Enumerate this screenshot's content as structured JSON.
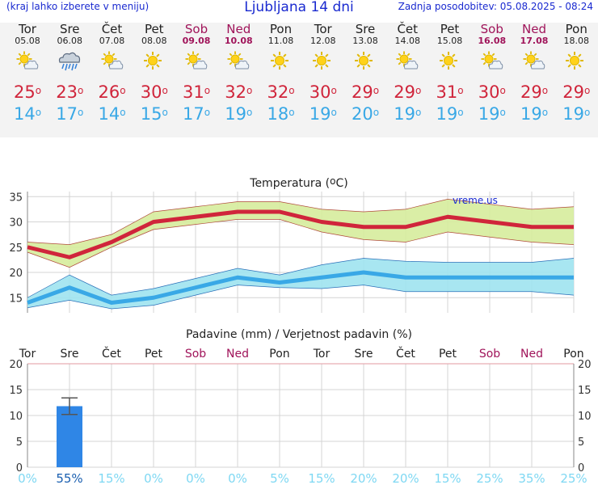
{
  "header": {
    "menu_hint": "(kraj lahko izberete v meniju)",
    "title": "Ljubljana 14 dni",
    "last_update": "Zadnja posodobitev: 05.08.2025 - 08:24"
  },
  "days": [
    {
      "name": "Tor",
      "date": "05.08",
      "icon": "partly-cloudy-icon",
      "max": "25",
      "min": "14",
      "weekend": false
    },
    {
      "name": "Sre",
      "date": "06.08",
      "icon": "rain-cloud-icon",
      "max": "23",
      "min": "17",
      "weekend": false
    },
    {
      "name": "Čet",
      "date": "07.08",
      "icon": "partly-cloudy-icon",
      "max": "26",
      "min": "14",
      "weekend": false
    },
    {
      "name": "Pet",
      "date": "08.08",
      "icon": "sun-icon",
      "max": "30",
      "min": "15",
      "weekend": false
    },
    {
      "name": "Sob",
      "date": "09.08",
      "icon": "partly-cloudy-icon",
      "max": "31",
      "min": "17",
      "weekend": true
    },
    {
      "name": "Ned",
      "date": "10.08",
      "icon": "partly-cloudy-icon",
      "max": "32",
      "min": "19",
      "weekend": true
    },
    {
      "name": "Pon",
      "date": "11.08",
      "icon": "sun-icon",
      "max": "32",
      "min": "18",
      "weekend": false
    },
    {
      "name": "Tor",
      "date": "12.08",
      "icon": "sun-icon",
      "max": "30",
      "min": "19",
      "weekend": false
    },
    {
      "name": "Sre",
      "date": "13.08",
      "icon": "sun-icon",
      "max": "29",
      "min": "20",
      "weekend": false
    },
    {
      "name": "Čet",
      "date": "14.08",
      "icon": "partly-cloudy-icon",
      "max": "29",
      "min": "19",
      "weekend": false
    },
    {
      "name": "Pet",
      "date": "15.08",
      "icon": "sun-icon",
      "max": "31",
      "min": "19",
      "weekend": false
    },
    {
      "name": "Sob",
      "date": "16.08",
      "icon": "partly-cloudy-icon",
      "max": "30",
      "min": "19",
      "weekend": true
    },
    {
      "name": "Ned",
      "date": "17.08",
      "icon": "partly-cloudy-icon",
      "max": "29",
      "min": "19",
      "weekend": true
    },
    {
      "name": "Pon",
      "date": "18.08",
      "icon": "sun-icon",
      "max": "29",
      "min": "19",
      "weekend": false
    }
  ],
  "degree_symbol": "o",
  "colors": {
    "max": "#d0253b",
    "min": "#39a8e6",
    "weekend": "#a0145a",
    "max_band": "#d6ec9c",
    "min_band": "#9fe3ef",
    "bar": "#2f86e6",
    "prob": "#7fd8f3"
  },
  "chart_data": [
    {
      "type": "line",
      "title": "Temperatura (°C)",
      "watermark": "vreme.us",
      "yticks": [
        15,
        20,
        25,
        30,
        35
      ],
      "ylim": [
        12,
        36
      ],
      "series": [
        {
          "name": "max",
          "values": [
            25,
            23,
            26,
            30,
            31,
            32,
            32,
            30,
            29,
            29,
            31,
            30,
            29,
            29
          ],
          "band_low": [
            24,
            21,
            25,
            28.5,
            29.5,
            30.5,
            30.5,
            28,
            26.5,
            26,
            28,
            27,
            26,
            25.5
          ],
          "band_high": [
            26,
            25.5,
            27.5,
            32,
            33,
            34,
            34,
            32.5,
            32,
            32.5,
            34.5,
            33.5,
            32.5,
            33
          ]
        },
        {
          "name": "min",
          "values": [
            14,
            17,
            14,
            15,
            17,
            19,
            18,
            19,
            20,
            19,
            19,
            19,
            19,
            19
          ],
          "band_low": [
            13,
            14.5,
            12.8,
            13.5,
            15.5,
            17.5,
            17,
            16.8,
            17.5,
            16.2,
            16.2,
            16.2,
            16.2,
            15.5
          ],
          "band_high": [
            15,
            19.5,
            15.5,
            16.8,
            18.8,
            20.8,
            19.5,
            21.5,
            22.8,
            22.2,
            22,
            22,
            22,
            22.8
          ]
        }
      ]
    },
    {
      "type": "bar",
      "title": "Padavine (mm) / Verjetnost padavin (%)",
      "yticks": [
        0,
        5,
        10,
        15,
        20
      ],
      "ylim": [
        0,
        20
      ],
      "categories": [
        "Tor",
        "Sre",
        "Čet",
        "Pet",
        "Sob",
        "Ned",
        "Pon",
        "Tor",
        "Sre",
        "Čet",
        "Pet",
        "Sob",
        "Ned",
        "Pon"
      ],
      "weekend": [
        false,
        false,
        false,
        false,
        true,
        true,
        false,
        false,
        false,
        false,
        false,
        true,
        true,
        false
      ],
      "precip_mm": [
        0,
        11.8,
        0,
        0,
        0,
        0,
        0,
        0,
        0,
        0,
        0,
        0,
        0,
        0
      ],
      "precip_range": [
        null,
        [
          10.2,
          13.4
        ],
        null,
        null,
        null,
        null,
        null,
        null,
        null,
        null,
        null,
        null,
        null,
        null
      ],
      "probability": [
        "0%",
        "55%",
        "15%",
        "0%",
        "0%",
        "0%",
        "5%",
        "15%",
        "20%",
        "20%",
        "15%",
        "25%",
        "35%",
        "25%"
      ]
    }
  ]
}
